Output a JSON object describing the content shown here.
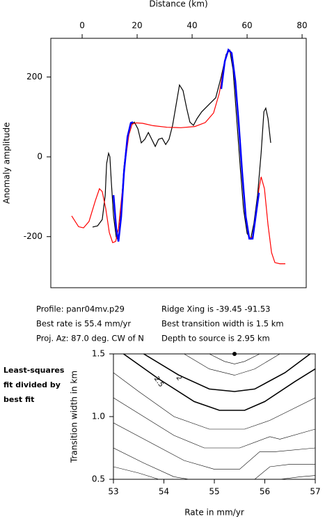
{
  "chart_data": [
    {
      "type": "line",
      "x_axis_position": "top",
      "xlabel": "Distance (km)",
      "ylabel": "Anomaly amplitude",
      "xlim": [
        -11.4,
        81.5
      ],
      "ylim": [
        -328,
        297
      ],
      "xticks": [
        0,
        20,
        40,
        60,
        80
      ],
      "yticks": [
        200,
        0,
        -200
      ],
      "series": [
        {
          "color": "#000000",
          "x": [
            3.8,
            5.6,
            7.3,
            8.4,
            8.9,
            9.6,
            10.1,
            10.6,
            11.4,
            12.4,
            13.2,
            14.2,
            15.2,
            16.5,
            17.7,
            19.0,
            20.3,
            21.5,
            22.8,
            24.1,
            25.3,
            26.6,
            27.8,
            29.1,
            30.4,
            31.6,
            32.9,
            34.2,
            35.4,
            36.7,
            38.0,
            39.2,
            40.5,
            41.8,
            43.5,
            46.1,
            48.6,
            50.6,
            52.4,
            53.7,
            54.9,
            56.2,
            57.5,
            58.7,
            60.0,
            61.3,
            62.5,
            63.8,
            65.1,
            66.1,
            66.8,
            67.6,
            68.6
          ],
          "values": [
            -176,
            -173,
            -157,
            -96,
            -17,
            9,
            0,
            -61,
            -148,
            -201,
            -209,
            -131,
            -26,
            52,
            82,
            87,
            70,
            35,
            44,
            61,
            44,
            26,
            44,
            47,
            31,
            44,
            79,
            131,
            180,
            166,
            122,
            87,
            79,
            96,
            113,
            131,
            148,
            201,
            257,
            267,
            218,
            96,
            -26,
            -131,
            -192,
            -206,
            -166,
            -96,
            9,
            113,
            122,
            96,
            35
          ]
        },
        {
          "color": "#ff0000",
          "x": [
            -3.8,
            -1.3,
            0.5,
            2.5,
            4.8,
            6.3,
            7.3,
            8.6,
            9.9,
            11.1,
            12.2,
            13.2,
            14.4,
            15.7,
            17.0,
            18.2,
            19.7,
            22.0,
            25.8,
            30.9,
            35.9,
            41.0,
            44.8,
            47.8,
            49.9,
            51.6,
            53.2,
            54.4,
            55.7,
            57.0,
            58.2,
            59.5,
            60.8,
            62.0,
            63.0,
            64.3,
            65.1,
            66.3,
            67.6,
            68.9,
            70.1,
            71.9,
            73.9
          ],
          "values": [
            -148,
            -175,
            -178,
            -162,
            -110,
            -80,
            -87,
            -130,
            -190,
            -215,
            -212,
            -180,
            -100,
            -10,
            55,
            82,
            85,
            84,
            78,
            74,
            73,
            76,
            86,
            110,
            160,
            230,
            268,
            256,
            190,
            80,
            -40,
            -150,
            -205,
            -200,
            -160,
            -80,
            -50,
            -80,
            -170,
            -240,
            -265,
            -268,
            -268
          ]
        },
        {
          "color": "#0000ff",
          "x": [
            11.4,
            12.4,
            13.2,
            14.2,
            15.2,
            16.5,
            17.7,
            18.5,
            30,
            50.6,
            51.9,
            53.2,
            54.4,
            55.7,
            57.0,
            58.2,
            59.5,
            60.8,
            62.0,
            63.3,
            64.3
          ],
          "values": [
            -96,
            -180,
            -212,
            -150,
            -40,
            50,
            85,
            87,
            null,
            170,
            240,
            268,
            260,
            190,
            80,
            -40,
            -150,
            -205,
            -205,
            -140,
            -90
          ]
        }
      ],
      "annotations": [
        "Profile: panr04mv.p29",
        "Best rate is 55.4 mm/yr",
        "Proj. Az: 87.0 deg. CW of N",
        "Ridge Xing is -39.45 -91.53",
        "Best transition width is 1.5 km",
        "Depth to source is   2.95 km"
      ]
    },
    {
      "type": "contour",
      "x_axis_position": "bottom",
      "xlabel": "Rate in mm/yr",
      "ylabel": "Transition width in km",
      "xlim": [
        53,
        57
      ],
      "ylim": [
        0.5,
        1.5
      ],
      "xticks": [
        53,
        54,
        55,
        56,
        57
      ],
      "yticks": [
        0.5,
        {
          "value": 1.0,
          "label": "1.0"
        },
        1.5
      ],
      "color": "#000000",
      "contours": [
        {
          "level": 1.2,
          "x": [
            54.9,
            55.2,
            55.4,
            55.6,
            55.9
          ],
          "y": [
            1.5,
            1.44,
            1.42,
            1.44,
            1.5
          ]
        },
        {
          "level": 1.5,
          "x": [
            54.4,
            54.9,
            55.4,
            55.8,
            56.3
          ],
          "y": [
            1.5,
            1.38,
            1.33,
            1.38,
            1.5
          ]
        },
        {
          "level": 2,
          "labeled": true,
          "x": [
            53.6,
            54.3,
            54.9,
            55.4,
            55.8,
            56.4,
            56.9
          ],
          "y": [
            1.5,
            1.33,
            1.22,
            1.2,
            1.22,
            1.35,
            1.5
          ]
        },
        {
          "level": 2.5,
          "labeled": true,
          "x": [
            53.2,
            53.9,
            54.6,
            55.1,
            55.6,
            56.0,
            56.6,
            57.0
          ],
          "y": [
            1.5,
            1.3,
            1.12,
            1.05,
            1.05,
            1.12,
            1.28,
            1.38
          ]
        },
        {
          "level": 3,
          "x": [
            53.0,
            53.5,
            54.2,
            54.9,
            55.6,
            56.1,
            56.5,
            57.0
          ],
          "y": [
            1.35,
            1.2,
            1.0,
            0.9,
            0.9,
            0.97,
            1.05,
            1.15
          ]
        },
        {
          "level": 3.5,
          "x": [
            53.0,
            53.6,
            54.2,
            54.8,
            55.5,
            56.1,
            56.3,
            57.0
          ],
          "y": [
            1.15,
            1.0,
            0.85,
            0.75,
            0.75,
            0.84,
            0.82,
            0.9
          ]
        },
        {
          "level": 4,
          "x": [
            53.0,
            53.7,
            54.4,
            55.0,
            55.5,
            55.9,
            56.2,
            57.0
          ],
          "y": [
            0.95,
            0.8,
            0.65,
            0.58,
            0.58,
            0.72,
            0.72,
            0.75
          ]
        },
        {
          "level": 4.5,
          "x": [
            53.0,
            53.6,
            54.2,
            54.5,
            55.2,
            55.8,
            56.1,
            56.5,
            57.0
          ],
          "y": [
            0.75,
            0.63,
            0.52,
            0.5,
            null,
            0.5,
            0.6,
            0.62,
            0.62
          ]
        },
        {
          "level": 5,
          "x": [
            53.0,
            53.5,
            53.9,
            55.2,
            56.3,
            56.7,
            57.0
          ],
          "y": [
            0.6,
            0.55,
            0.5,
            null,
            0.5,
            0.52,
            0.53
          ]
        }
      ],
      "best_point": {
        "x": 55.4,
        "y": 1.5
      },
      "annotations": [
        "Least-squares",
        "fit divided by",
        "best fit"
      ]
    }
  ]
}
